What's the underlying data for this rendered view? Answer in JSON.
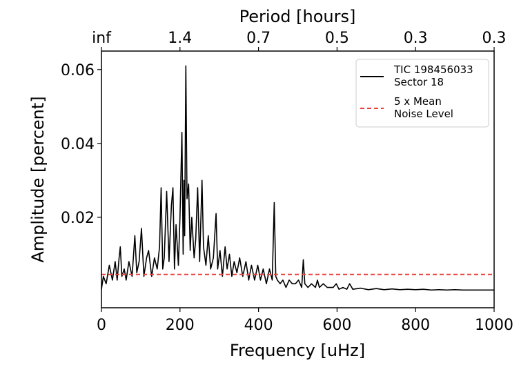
{
  "chart_data": {
    "type": "line",
    "title": "",
    "xlabel": "Frequency [uHz]",
    "ylabel": "Amplitude [percent]",
    "top_xlabel": "Period [hours]",
    "xlim": [
      0,
      1000
    ],
    "ylim": [
      -0.0045,
      0.065
    ],
    "x_ticks": [
      {
        "value": 0,
        "label": "0"
      },
      {
        "value": 200,
        "label": "200"
      },
      {
        "value": 400,
        "label": "400"
      },
      {
        "value": 600,
        "label": "600"
      },
      {
        "value": 800,
        "label": "800"
      },
      {
        "value": 1000,
        "label": "1000"
      }
    ],
    "y_ticks": [
      {
        "value": 0.02,
        "label": "0.02"
      },
      {
        "value": 0.04,
        "label": "0.04"
      },
      {
        "value": 0.06,
        "label": "0.06"
      }
    ],
    "top_ticks": [
      {
        "value": 0,
        "label": "inf"
      },
      {
        "value": 200,
        "label": "1.4"
      },
      {
        "value": 400,
        "label": "0.7"
      },
      {
        "value": 600,
        "label": "0.5"
      },
      {
        "value": 800,
        "label": "0.3"
      },
      {
        "value": 1000,
        "label": "0.3"
      }
    ],
    "grid": false,
    "legend_position": "top-right",
    "series": [
      {
        "name": "TIC 198456033",
        "name_line2": "Sector 18",
        "color": "#000000",
        "style": "solid",
        "x": [
          0,
          5,
          12,
          20,
          28,
          35,
          40,
          45,
          48,
          52,
          58,
          63,
          70,
          78,
          85,
          90,
          96,
          102,
          108,
          115,
          120,
          128,
          135,
          142,
          148,
          152,
          156,
          160,
          166,
          172,
          178,
          182,
          186,
          190,
          196,
          200,
          205,
          208,
          210,
          212,
          215,
          218,
          222,
          226,
          230,
          236,
          240,
          245,
          250,
          256,
          260,
          266,
          272,
          278,
          285,
          292,
          296,
          302,
          308,
          315,
          320,
          326,
          332,
          338,
          345,
          352,
          360,
          368,
          375,
          382,
          390,
          398,
          405,
          412,
          420,
          428,
          435,
          440,
          444,
          448,
          455,
          462,
          470,
          478,
          486,
          494,
          502,
          510,
          514,
          518,
          526,
          535,
          545,
          550,
          555,
          565,
          575,
          590,
          598,
          605,
          615,
          625,
          632,
          640,
          660,
          680,
          700,
          720,
          740,
          760,
          780,
          800,
          820,
          840,
          860,
          880,
          900,
          920,
          940,
          960,
          980,
          1000
        ],
        "y": [
          0.0005,
          0.004,
          0.002,
          0.007,
          0.003,
          0.008,
          0.003,
          0.009,
          0.012,
          0.004,
          0.006,
          0.003,
          0.008,
          0.004,
          0.015,
          0.005,
          0.008,
          0.017,
          0.004,
          0.009,
          0.011,
          0.004,
          0.009,
          0.006,
          0.012,
          0.028,
          0.006,
          0.009,
          0.027,
          0.008,
          0.023,
          0.028,
          0.006,
          0.018,
          0.007,
          0.02,
          0.043,
          0.01,
          0.03,
          0.015,
          0.061,
          0.025,
          0.029,
          0.011,
          0.02,
          0.009,
          0.014,
          0.028,
          0.008,
          0.03,
          0.012,
          0.007,
          0.015,
          0.006,
          0.009,
          0.021,
          0.006,
          0.011,
          0.004,
          0.012,
          0.006,
          0.01,
          0.004,
          0.008,
          0.005,
          0.009,
          0.004,
          0.008,
          0.003,
          0.007,
          0.003,
          0.007,
          0.003,
          0.006,
          0.002,
          0.006,
          0.003,
          0.024,
          0.004,
          0.003,
          0.002,
          0.003,
          0.001,
          0.003,
          0.002,
          0.002,
          0.003,
          0.001,
          0.0085,
          0.002,
          0.001,
          0.002,
          0.001,
          0.003,
          0.001,
          0.002,
          0.001,
          0.001,
          0.002,
          0.0005,
          0.001,
          0.0005,
          0.002,
          0.0005,
          0.0008,
          0.0004,
          0.0007,
          0.0004,
          0.0006,
          0.0004,
          0.0005,
          0.0004,
          0.0005,
          0.0003,
          0.0004,
          0.0003,
          0.0004,
          0.0003,
          0.0003,
          0.0003,
          0.0003,
          0.0003
        ]
      },
      {
        "name": "5 x Mean",
        "name_line2": "Noise Level",
        "color": "#e8423b",
        "style": "dashed",
        "x": [
          0,
          1000
        ],
        "y": [
          0.0045,
          0.0045
        ]
      }
    ]
  }
}
